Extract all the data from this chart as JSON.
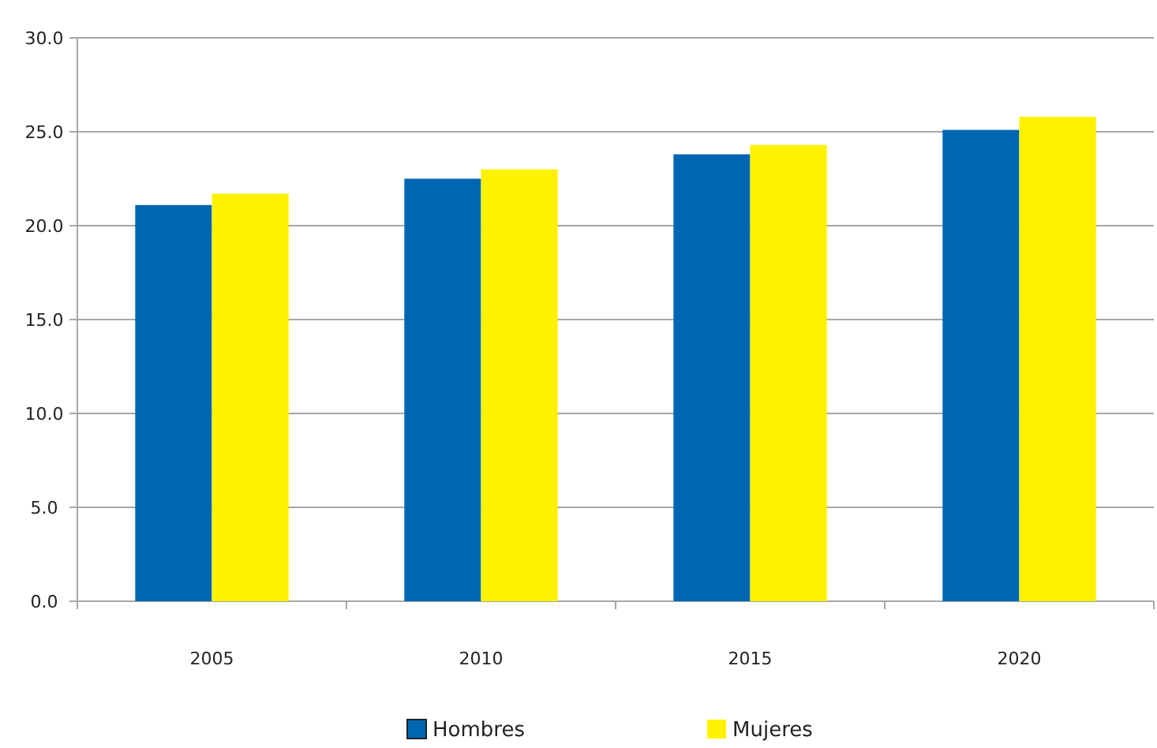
{
  "chart_data": {
    "type": "bar",
    "categories": [
      "2005",
      "2010",
      "2015",
      "2020"
    ],
    "series": [
      {
        "name": "Hombres",
        "color": "#0066b3",
        "values": [
          21.1,
          22.5,
          23.8,
          25.1
        ]
      },
      {
        "name": "Mujeres",
        "color": "#fff200",
        "values": [
          21.7,
          23.0,
          24.3,
          25.8
        ]
      }
    ],
    "ylim": [
      0,
      30
    ],
    "yticks": [
      {
        "value": 0,
        "label": "0.0"
      },
      {
        "value": 5,
        "label": "5.0"
      },
      {
        "value": 10,
        "label": "10.0"
      },
      {
        "value": 15,
        "label": "15.0"
      },
      {
        "value": 20,
        "label": "20.0"
      },
      {
        "value": 25,
        "label": "25.0"
      },
      {
        "value": 30,
        "label": "30.0"
      }
    ],
    "grid": "y",
    "legend": "bottom"
  }
}
